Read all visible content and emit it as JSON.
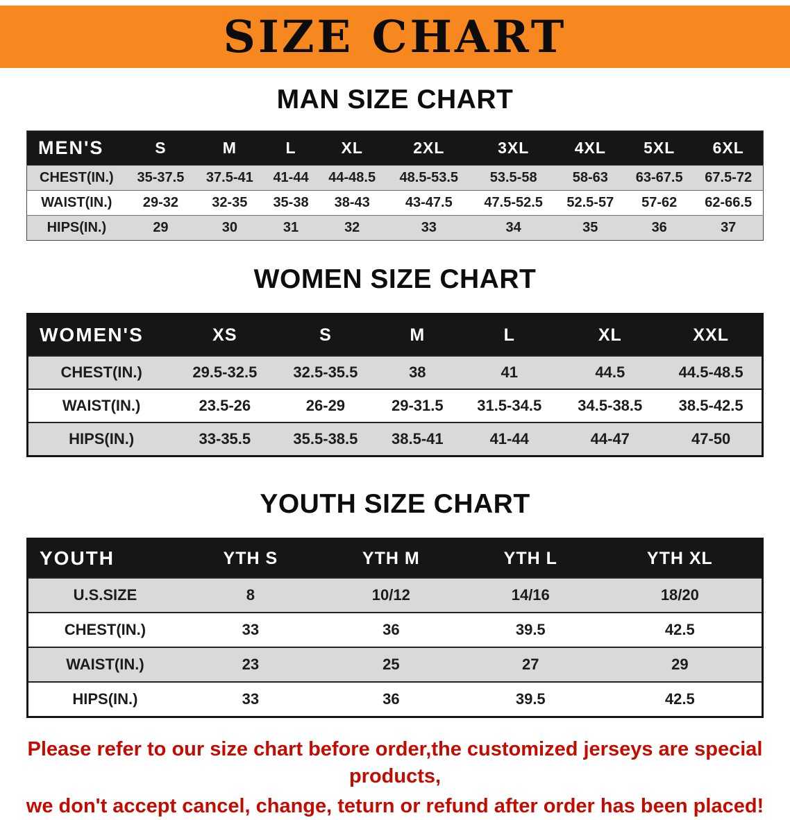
{
  "banner": {
    "title": "SIZE CHART"
  },
  "colors": {
    "banner_bg": "#f6881f",
    "header_bg": "#161616",
    "stripe": "#d9d9d9",
    "disclaimer": "#c30b00"
  },
  "sections": [
    {
      "id": "men",
      "heading": "MAN SIZE CHART",
      "table": {
        "header": [
          "MEN'S",
          "S",
          "M",
          "L",
          "XL",
          "2XL",
          "3XL",
          "4XL",
          "5XL",
          "6XL"
        ],
        "rows": [
          [
            "CHEST(IN.)",
            "35-37.5",
            "37.5-41",
            "41-44",
            "44-48.5",
            "48.5-53.5",
            "53.5-58",
            "58-63",
            "63-67.5",
            "67.5-72"
          ],
          [
            "WAIST(IN.)",
            "29-32",
            "32-35",
            "35-38",
            "38-43",
            "43-47.5",
            "47.5-52.5",
            "52.5-57",
            "57-62",
            "62-66.5"
          ],
          [
            "HIPS(IN.)",
            "29",
            "30",
            "31",
            "32",
            "33",
            "34",
            "35",
            "36",
            "37"
          ]
        ]
      }
    },
    {
      "id": "women",
      "heading": "WOMEN SIZE CHART",
      "table": {
        "header": [
          "WOMEN'S",
          "XS",
          "S",
          "M",
          "L",
          "XL",
          "XXL"
        ],
        "rows": [
          [
            "CHEST(IN.)",
            "29.5-32.5",
            "32.5-35.5",
            "38",
            "41",
            "44.5",
            "44.5-48.5"
          ],
          [
            "WAIST(IN.)",
            "23.5-26",
            "26-29",
            "29-31.5",
            "31.5-34.5",
            "34.5-38.5",
            "38.5-42.5"
          ],
          [
            "HIPS(IN.)",
            "33-35.5",
            "35.5-38.5",
            "38.5-41",
            "41-44",
            "44-47",
            "47-50"
          ]
        ]
      }
    },
    {
      "id": "youth",
      "heading": "YOUTH SIZE CHART",
      "table": {
        "header": [
          "YOUTH",
          "YTH S",
          "YTH M",
          "YTH L",
          "YTH XL"
        ],
        "rows": [
          [
            "U.S.SIZE",
            "8",
            "10/12",
            "14/16",
            "18/20"
          ],
          [
            "CHEST(IN.)",
            "33",
            "36",
            "39.5",
            "42.5"
          ],
          [
            "WAIST(IN.)",
            "23",
            "25",
            "27",
            "29"
          ],
          [
            "HIPS(IN.)",
            "33",
            "36",
            "39.5",
            "42.5"
          ]
        ]
      }
    }
  ],
  "disclaimer": {
    "lines": [
      "Please refer to our size chart before order,the customized jerseys are special products,",
      "we don't accept cancel, change, teturn or refund after order has been placed!"
    ]
  }
}
